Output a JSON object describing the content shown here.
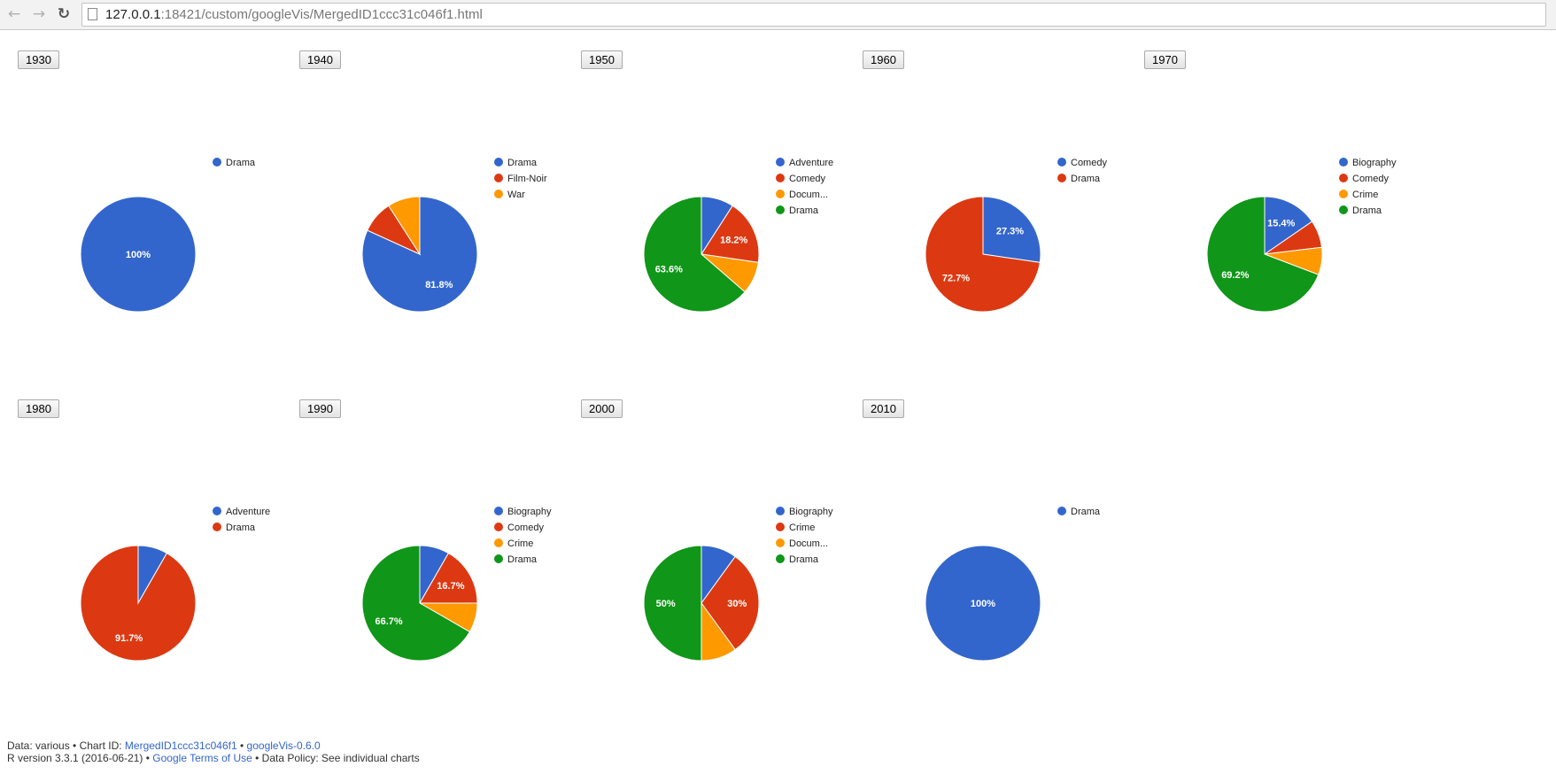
{
  "browser": {
    "url_host": "127.0.0.1",
    "url_rest": ":18421/custom/googleVis/MergedID1ccc31c046f1.html"
  },
  "colors": {
    "Drama_first": "#3366cc",
    "palette": [
      "#3366cc",
      "#dc3912",
      "#ff9900",
      "#109618"
    ]
  },
  "chart_data": [
    {
      "type": "pie",
      "button": "1930",
      "slices": [
        {
          "label": "Drama",
          "value": 100,
          "pct_label": "100%",
          "color": "#3366cc"
        }
      ]
    },
    {
      "type": "pie",
      "button": "1940",
      "slices": [
        {
          "label": "Drama",
          "value": 81.8,
          "pct_label": "81.8%",
          "color": "#3366cc"
        },
        {
          "label": "Film-Noir",
          "value": 9.1,
          "pct_label": "",
          "color": "#dc3912"
        },
        {
          "label": "War",
          "value": 9.1,
          "pct_label": "",
          "color": "#ff9900"
        }
      ]
    },
    {
      "type": "pie",
      "button": "1950",
      "slices": [
        {
          "label": "Adventure",
          "value": 9.1,
          "pct_label": "",
          "color": "#3366cc"
        },
        {
          "label": "Comedy",
          "value": 18.2,
          "pct_label": "18.2%",
          "color": "#dc3912"
        },
        {
          "label": "Docum...",
          "value": 9.1,
          "pct_label": "",
          "color": "#ff9900"
        },
        {
          "label": "Drama",
          "value": 63.6,
          "pct_label": "63.6%",
          "color": "#109618"
        }
      ]
    },
    {
      "type": "pie",
      "button": "1960",
      "slices": [
        {
          "label": "Comedy",
          "value": 27.3,
          "pct_label": "27.3%",
          "color": "#3366cc"
        },
        {
          "label": "Drama",
          "value": 72.7,
          "pct_label": "72.7%",
          "color": "#dc3912"
        }
      ]
    },
    {
      "type": "pie",
      "button": "1970",
      "slices": [
        {
          "label": "Biography",
          "value": 15.4,
          "pct_label": "15.4%",
          "color": "#3366cc"
        },
        {
          "label": "Comedy",
          "value": 7.7,
          "pct_label": "",
          "color": "#dc3912"
        },
        {
          "label": "Crime",
          "value": 7.7,
          "pct_label": "",
          "color": "#ff9900"
        },
        {
          "label": "Drama",
          "value": 69.2,
          "pct_label": "69.2%",
          "color": "#109618"
        }
      ]
    },
    {
      "type": "pie",
      "button": "1980",
      "slices": [
        {
          "label": "Adventure",
          "value": 8.3,
          "pct_label": "",
          "color": "#3366cc"
        },
        {
          "label": "Drama",
          "value": 91.7,
          "pct_label": "91.7%",
          "color": "#dc3912"
        }
      ]
    },
    {
      "type": "pie",
      "button": "1990",
      "slices": [
        {
          "label": "Biography",
          "value": 8.3,
          "pct_label": "",
          "color": "#3366cc"
        },
        {
          "label": "Comedy",
          "value": 16.7,
          "pct_label": "16.7%",
          "color": "#dc3912"
        },
        {
          "label": "Crime",
          "value": 8.3,
          "pct_label": "",
          "color": "#ff9900"
        },
        {
          "label": "Drama",
          "value": 66.7,
          "pct_label": "66.7%",
          "color": "#109618"
        }
      ]
    },
    {
      "type": "pie",
      "button": "2000",
      "slices": [
        {
          "label": "Biography",
          "value": 10,
          "pct_label": "",
          "color": "#3366cc"
        },
        {
          "label": "Crime",
          "value": 30,
          "pct_label": "30%",
          "color": "#dc3912"
        },
        {
          "label": "Docum...",
          "value": 10,
          "pct_label": "",
          "color": "#ff9900"
        },
        {
          "label": "Drama",
          "value": 50,
          "pct_label": "50%",
          "color": "#109618"
        }
      ]
    },
    {
      "type": "pie",
      "button": "2010",
      "slices": [
        {
          "label": "Drama",
          "value": 100,
          "pct_label": "100%",
          "color": "#3366cc"
        }
      ]
    }
  ],
  "footer": {
    "line1_prefix": "Data: various • Chart ID: ",
    "chart_id_link": "MergedID1ccc31c046f1",
    "sep1": " • ",
    "googlevis_link": "googleVis-0.6.0",
    "line2_prefix": "R version 3.3.1 (2016-06-21) • ",
    "terms_link": "Google Terms of Use",
    "line2_suffix": " • Data Policy: See individual charts"
  }
}
